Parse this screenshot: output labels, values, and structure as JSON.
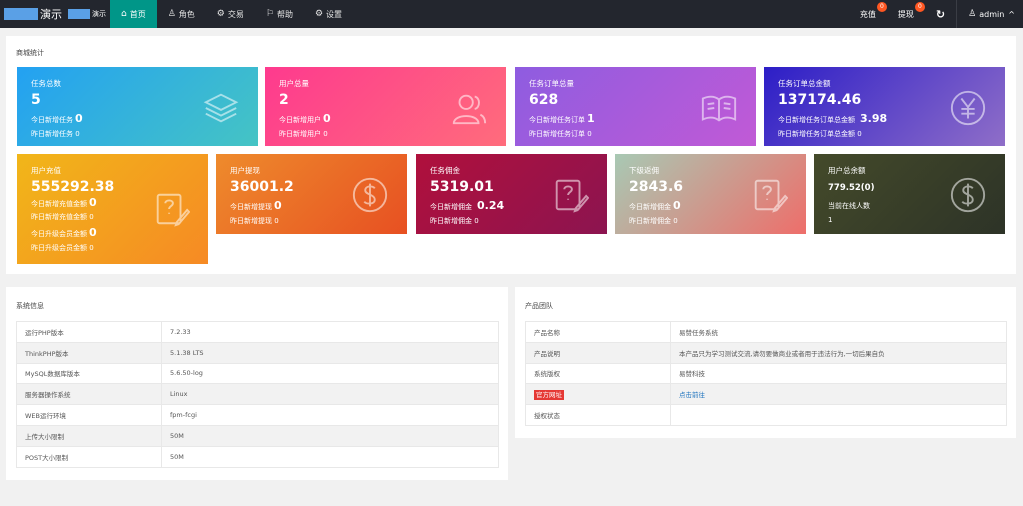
{
  "topbar": {
    "brand": "演示",
    "brand_small": "演示",
    "nav": [
      {
        "label": "首页",
        "icon": "home-icon",
        "glyph": "⌂"
      },
      {
        "label": "角色",
        "icon": "user-icon",
        "glyph": "♙"
      },
      {
        "label": "交易",
        "icon": "settings-icon",
        "glyph": "⚙"
      },
      {
        "label": "帮助",
        "icon": "flag-icon",
        "glyph": "⚐"
      },
      {
        "label": "设置",
        "icon": "gear-icon",
        "glyph": "⚙"
      }
    ],
    "recharge": {
      "label": "充值",
      "badge": "0"
    },
    "withdraw": {
      "label": "提现",
      "badge": "0"
    },
    "refresh_glyph": "↻",
    "user": {
      "glyph": "♙",
      "name": "admin",
      "caret": "^"
    }
  },
  "stats": {
    "title": "商城统计",
    "row1": [
      {
        "title": "任务总数",
        "value": "5",
        "l1": "今日新增任务",
        "v1": "0",
        "l2": "昨日新增任务",
        "v2": "0",
        "icon": "layers-icon",
        "gradient": [
          "#23a1f2",
          "#45c4c4"
        ]
      },
      {
        "title": "用户总量",
        "value": "2",
        "l1": "今日新增用户",
        "v1": "0",
        "l2": "昨日新增用户",
        "v2": "0",
        "icon": "users-icon",
        "gradient": [
          "#fe3a8e",
          "#ff6c7c"
        ]
      },
      {
        "title": "任务订单总量",
        "value": "628",
        "l1": "今日新增任务订单",
        "v1": "1",
        "l2": "昨日新增任务订单",
        "v2": "0",
        "icon": "book-icon",
        "gradient": [
          "#8e5ce0",
          "#c15ad6"
        ]
      },
      {
        "title": "任务订单总金额",
        "value": "137174.46",
        "l1": "今日新增任务订单总金额",
        "v1": "3.98",
        "l2": "昨日新增任务订单总金额",
        "v2": "0",
        "icon": "yen-icon",
        "gradient": [
          "#2c1ec7",
          "#8f6ec8"
        ]
      }
    ],
    "row2": [
      {
        "title": "用户充值",
        "value": "555292.38",
        "lines": [
          {
            "label": "今日新增充值金额",
            "value": "0"
          },
          {
            "label": "昨日新增充值金额",
            "value": "0"
          },
          {
            "label": "今日升级会员金额",
            "value": "0"
          },
          {
            "label": "昨日升级会员金额",
            "value": "0"
          }
        ],
        "icon": "edit-note-icon",
        "gradient": [
          "#f1b619",
          "#f68a24"
        ]
      },
      {
        "title": "用户提现",
        "value": "36001.2",
        "l1": "今日新增提现",
        "v1": "0",
        "l2": "昨日新增提现",
        "v2": "0",
        "icon": "dollar-icon",
        "gradient": [
          "#ee8b2c",
          "#e75022"
        ]
      },
      {
        "title": "任务佣金",
        "value": "5319.01",
        "l1": "今日新增佣金",
        "v1": "0.24",
        "l2": "昨日新增佣金",
        "v2": "0",
        "icon": "edit-note-icon",
        "gradient": [
          "#b0103c",
          "#8c1450"
        ]
      },
      {
        "title": "下级返佣",
        "value": "2843.6",
        "l1": "今日新增佣金",
        "v1": "0",
        "l2": "昨日新增佣金",
        "v2": "0",
        "icon": "edit-note-icon",
        "gradient": [
          "#a8c9b4",
          "#ee6e6a"
        ]
      },
      {
        "title": "用户总余额",
        "value": "779.52(0)",
        "l1": "当前在线人数",
        "v1": "",
        "l2": "1",
        "v2": "",
        "icon": "dollar-icon",
        "gradient": [
          "#444a2a",
          "#2d3327"
        ]
      }
    ]
  },
  "system": {
    "title": "系统信息",
    "rows": [
      {
        "k": "运行PHP版本",
        "v": "7.2.33"
      },
      {
        "k": "ThinkPHP版本",
        "v": "5.1.38 LTS"
      },
      {
        "k": "MySQL数据库版本",
        "v": "5.6.50-log"
      },
      {
        "k": "服务器操作系统",
        "v": "Linux"
      },
      {
        "k": "WEB运行环境",
        "v": "fpm-fcgi"
      },
      {
        "k": "上传大小限制",
        "v": "50M"
      },
      {
        "k": "POST大小限制",
        "v": "50M"
      }
    ]
  },
  "product": {
    "title": "产品团队",
    "rows": [
      {
        "k": "产品名称",
        "v": "易赞任务系统"
      },
      {
        "k": "产品说明",
        "v": "本产品只为学习测试交流,请勿要做商业或者用于违法行为,一切后果自负"
      },
      {
        "k": "系统版权",
        "v": "易赞科技"
      },
      {
        "k": "官方网址",
        "v": "点击前往"
      },
      {
        "k": "授权状态",
        "v": ""
      }
    ]
  }
}
